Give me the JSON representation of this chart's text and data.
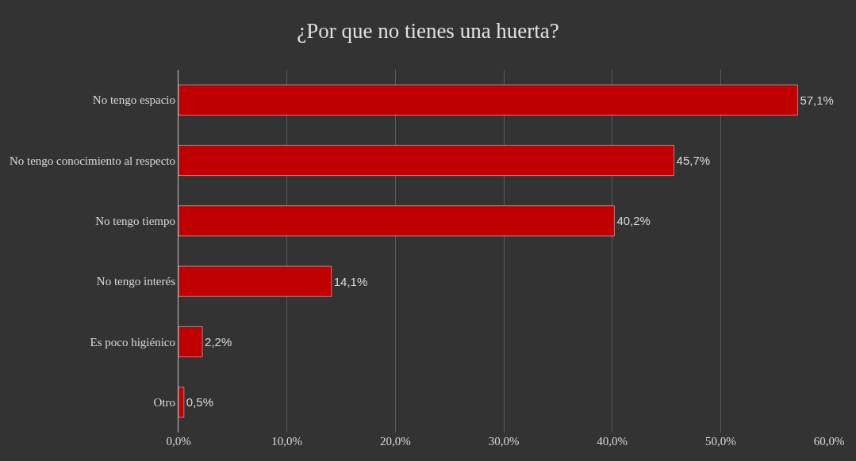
{
  "chart_data": {
    "type": "bar",
    "orientation": "horizontal",
    "title": "¿Por que no tienes una huerta?",
    "categories": [
      "No tengo espacio",
      "No tengo conocimiento al respecto",
      "No tengo tiempo",
      "No tengo interés",
      "Es poco higiénico",
      "Otro"
    ],
    "values": [
      57.1,
      45.7,
      40.2,
      14.1,
      2.2,
      0.5
    ],
    "value_labels": [
      "57,1%",
      "45,7%",
      "40,2%",
      "14,1%",
      "2,2%",
      "0,5%"
    ],
    "color": "#c00000",
    "xlim": [
      0,
      60
    ],
    "xticks": [
      {
        "value": 0,
        "label": "0,0%"
      },
      {
        "value": 10,
        "label": "10,0%"
      },
      {
        "value": 20,
        "label": "20,0%"
      },
      {
        "value": 30,
        "label": "30,0%"
      },
      {
        "value": 40,
        "label": "40,0%"
      },
      {
        "value": 50,
        "label": "50,0%"
      },
      {
        "value": 60,
        "label": "60,0%"
      }
    ],
    "grid": "x"
  }
}
